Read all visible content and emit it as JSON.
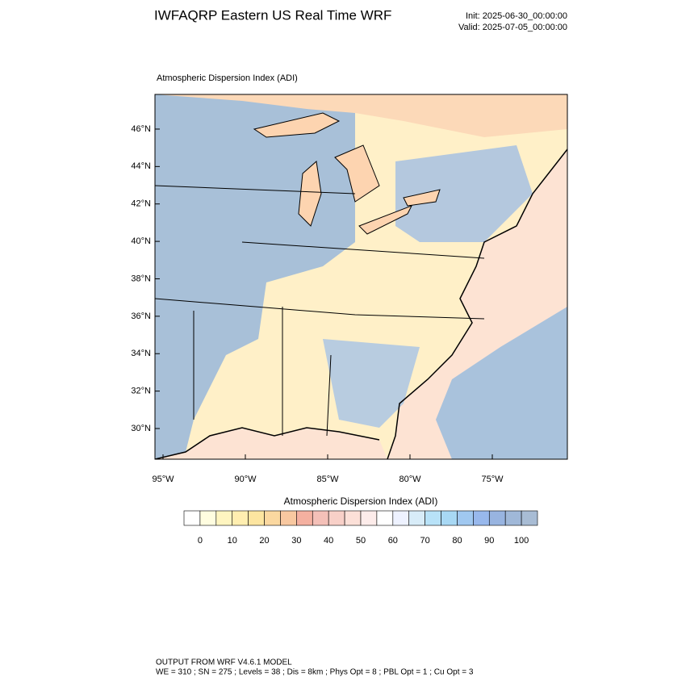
{
  "header": {
    "title": "IWFAQRP Eastern US Real Time WRF",
    "init": "Init: 2025-06-30_00:00:00",
    "valid": "Valid: 2025-07-05_00:00:00"
  },
  "map": {
    "label": "Atmospheric Dispersion Index   (ADI)",
    "lat_ticks": [
      {
        "value": 30,
        "label": "30°N"
      },
      {
        "value": 32,
        "label": "32°N"
      },
      {
        "value": 34,
        "label": "34°N"
      },
      {
        "value": 36,
        "label": "36°N"
      },
      {
        "value": 38,
        "label": "38°N"
      },
      {
        "value": 40,
        "label": "40°N"
      },
      {
        "value": 42,
        "label": "42°N"
      },
      {
        "value": 44,
        "label": "44°N"
      },
      {
        "value": 46,
        "label": "46°N"
      }
    ],
    "lon_ticks": [
      {
        "value": -95,
        "label": "95°W"
      },
      {
        "value": -90,
        "label": "90°W"
      },
      {
        "value": -85,
        "label": "85°W"
      },
      {
        "value": -80,
        "label": "80°W"
      },
      {
        "value": -75,
        "label": "75°W"
      }
    ]
  },
  "colorbar": {
    "title": "Atmospheric Dispersion Index  (ADI)",
    "colors": [
      "#ffffff",
      "#fffde0",
      "#fff5c0",
      "#ffeeb0",
      "#fde5a0",
      "#fbd8a0",
      "#f8c8a0",
      "#f4b0a0",
      "#f4c0b8",
      "#f8d0c8",
      "#fce0d8",
      "#fdecea",
      "#ffffff",
      "#eef2ff",
      "#d8ecf8",
      "#b8e2f8",
      "#a8d8f4",
      "#a0c8f0",
      "#98b8ec",
      "#98b4e0",
      "#a0b8d8",
      "#a8bcd4"
    ],
    "ticks": [
      0,
      10,
      20,
      30,
      40,
      50,
      60,
      70,
      80,
      90,
      100
    ]
  },
  "footer": {
    "line1": "OUTPUT FROM WRF V4.6.1 MODEL",
    "line2": "WE = 310 ; SN = 275 ; Levels = 38 ; Dis = 8km ; Phys Opt = 8 ; PBL Opt = 1 ; Cu Opt = 3"
  }
}
